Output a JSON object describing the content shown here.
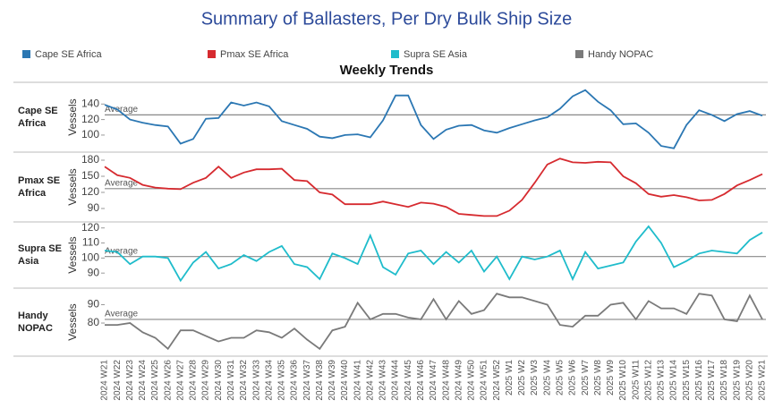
{
  "chart_data": {
    "type": "line",
    "title": "Summary of Ballasters, Per Dry Bulk Ship Size",
    "subtitle": "Weekly Trends",
    "y_label": "Vessels",
    "reference_label": "Average",
    "categories": [
      "2024 W21",
      "2024 W22",
      "2024 W23",
      "2024 W24",
      "2024 W25",
      "2024 W26",
      "2024 W27",
      "2024 W28",
      "2024 W29",
      "2024 W30",
      "2024 W31",
      "2024 W32",
      "2024 W33",
      "2024 W34",
      "2024 W35",
      "2024 W36",
      "2024 W37",
      "2024 W38",
      "2024 W39",
      "2024 W40",
      "2024 W41",
      "2024 W42",
      "2024 W43",
      "2024 W44",
      "2024 W45",
      "2024 W46",
      "2024 W47",
      "2024 W48",
      "2024 W49",
      "2024 W50",
      "2024 W51",
      "2024 W52",
      "2025 W1",
      "2025 W2",
      "2025 W3",
      "2025 W4",
      "2025 W5",
      "2025 W6",
      "2025 W7",
      "2025 W8",
      "2025 W9",
      "2025 W10",
      "2025 W11",
      "2025 W12",
      "2025 W13",
      "2025 W14",
      "2025 W15",
      "2025 W16",
      "2025 W17",
      "2025 W18",
      "2025 W19",
      "2025 W20",
      "2025 W21"
    ],
    "series": [
      {
        "name": "Cape SE Africa",
        "color": "#2b77b3",
        "average": 126,
        "ylim": [
          78,
          168
        ],
        "yticks": [
          100,
          120,
          140
        ],
        "values": [
          139,
          133,
          120,
          116,
          113,
          111,
          89,
          95,
          121,
          122,
          142,
          138,
          142,
          137,
          118,
          113,
          108,
          98,
          96,
          100,
          101,
          97,
          119,
          151,
          151,
          113,
          95,
          107,
          112,
          113,
          106,
          103,
          109,
          114,
          119,
          123,
          134,
          150,
          158,
          143,
          132,
          114,
          115,
          103,
          86,
          83,
          113,
          132,
          126,
          118,
          127,
          131,
          125
        ]
      },
      {
        "name": "Pmax SE Africa",
        "color": "#d62a2f",
        "average": 127,
        "ylim": [
          65,
          195
        ],
        "yticks": [
          90,
          120,
          150,
          180
        ],
        "values": [
          168,
          152,
          147,
          134,
          129,
          127,
          126,
          138,
          147,
          168,
          147,
          157,
          163,
          163,
          164,
          143,
          141,
          120,
          116,
          98,
          98,
          98,
          103,
          98,
          93,
          101,
          99,
          93,
          80,
          78,
          76,
          76,
          86,
          106,
          138,
          172,
          183,
          176,
          175,
          177,
          176,
          150,
          137,
          117,
          112,
          115,
          111,
          105,
          106,
          117,
          133,
          143,
          154
        ]
      },
      {
        "name": "Supra SE Asia",
        "color": "#1fbccb",
        "average": 101,
        "ylim": [
          80,
          124
        ],
        "yticks": [
          90,
          100,
          110,
          120
        ],
        "values": [
          105,
          104,
          96,
          101,
          101,
          100,
          85,
          97,
          104,
          93,
          96,
          102,
          98,
          104,
          108,
          96,
          94,
          86,
          103,
          100,
          96,
          115,
          94,
          89,
          103,
          105,
          96,
          104,
          97,
          105,
          91,
          101,
          86,
          101,
          99,
          101,
          105,
          86,
          104,
          93,
          95,
          97,
          111,
          121,
          110,
          94,
          98,
          103,
          105,
          104,
          103,
          112,
          117
        ]
      },
      {
        "name": "Handy NOPAC",
        "color": "#7a7a7a",
        "average": 82,
        "ylim": [
          62,
          99
        ],
        "yticks": [
          80,
          90
        ],
        "values": [
          79,
          79,
          80,
          75,
          72,
          66,
          76,
          76,
          73,
          70,
          72,
          72,
          76,
          75,
          72,
          77,
          71,
          66,
          76,
          78,
          91,
          82,
          85,
          85,
          83,
          82,
          93,
          82,
          92,
          85,
          87,
          96,
          94,
          94,
          92,
          90,
          79,
          78,
          84,
          84,
          90,
          91,
          82,
          92,
          88,
          88,
          85,
          96,
          95,
          82,
          81,
          95,
          82
        ]
      }
    ]
  }
}
